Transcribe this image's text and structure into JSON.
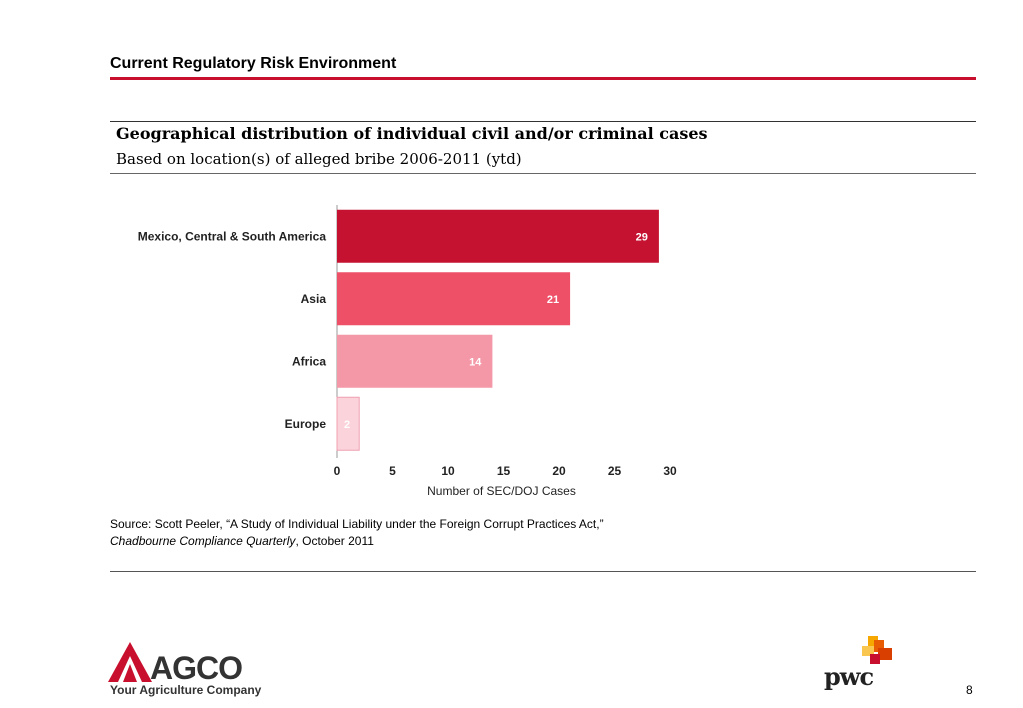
{
  "slide": {
    "title": "Current Regulatory Risk Environment",
    "heading": "Geographical distribution of individual civil and/or criminal cases",
    "subheading": "Based on location(s) of alleged bribe 2006-2011 (ytd)",
    "source_prefix": "Source: Scott Peeler, “A Study of Individual Liability under the Foreign Corrupt Practices Act,” ",
    "source_publication": "Chadbourne Compliance Quarterly",
    "source_suffix": ", October 2011",
    "page_number": "8"
  },
  "logos": {
    "agco_name": "AGCO",
    "agco_tagline": "Your Agriculture Company",
    "pwc_name": "pwc"
  },
  "colors": {
    "accent": "#c8102e"
  },
  "chart_data": {
    "type": "bar",
    "orientation": "horizontal",
    "categories": [
      "Mexico, Central & South America",
      "Asia",
      "Africa",
      "Europe"
    ],
    "values": [
      29,
      21,
      14,
      2
    ],
    "bar_colors": [
      "#c41230",
      "#ee5068",
      "#f497a6",
      "#fbd3da"
    ],
    "xlabel": "Number of SEC/DOJ Cases",
    "xlim": [
      0,
      30
    ],
    "xticks": [
      0,
      5,
      10,
      15,
      20,
      25,
      30
    ],
    "grid": false,
    "data_labels": true
  }
}
